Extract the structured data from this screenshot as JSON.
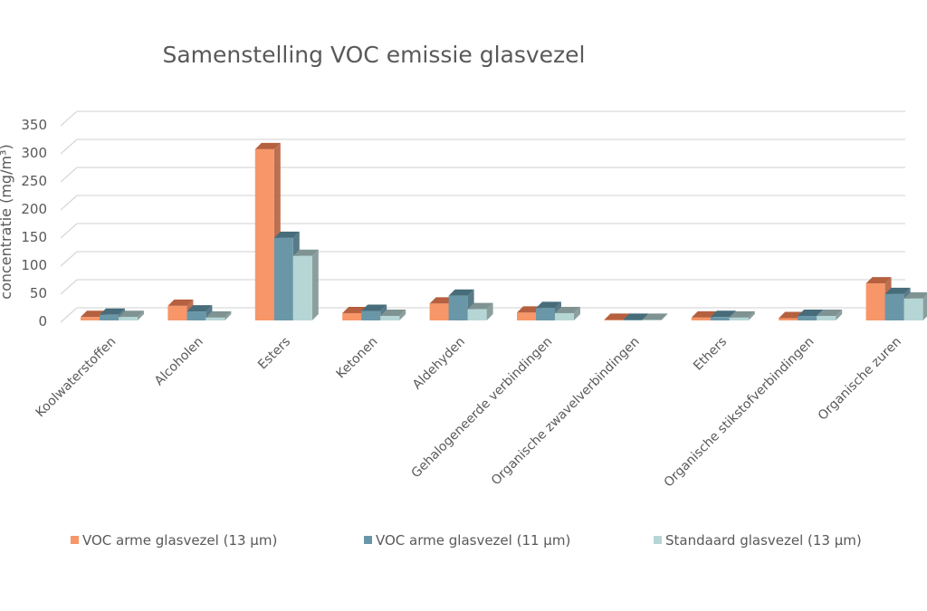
{
  "chart_data": {
    "type": "bar",
    "title": "Samenstelling VOC emissie glasvezel",
    "xlabel": "",
    "ylabel": "concentratie (mg/m³)",
    "ylim": [
      0,
      350
    ],
    "yticks": [
      0,
      50,
      100,
      150,
      200,
      250,
      300,
      350
    ],
    "grid": true,
    "legend_position": "bottom",
    "style": "3d clustered column",
    "categories": [
      "Koolwaterstoffen",
      "Alcoholen",
      "Esters",
      "Ketonen",
      "Aldehyden",
      "Gehalogeneerde verbindingen",
      "Organische zwavelverbindingen",
      "Ethers",
      "Organische stikstofverbindingen",
      "Organische zuren"
    ],
    "series": [
      {
        "name": "VOC arme glasvezel (13 µm)",
        "color": "#F79668",
        "side": "#B5603F",
        "values": [
          6,
          26,
          305,
          13,
          30,
          14,
          1,
          5,
          4,
          66
        ]
      },
      {
        "name": "VOC arme glasvezel (11 µm)",
        "color": "#6A97A8",
        "side": "#476C7A",
        "values": [
          10,
          16,
          147,
          17,
          44,
          22,
          1,
          6,
          8,
          47
        ]
      },
      {
        "name": "Standaard glasvezel (13 µm)",
        "color": "#B6D6D6",
        "side": "#7F9393",
        "values": [
          6,
          5,
          115,
          8,
          20,
          13,
          1,
          5,
          8,
          39
        ]
      }
    ]
  }
}
